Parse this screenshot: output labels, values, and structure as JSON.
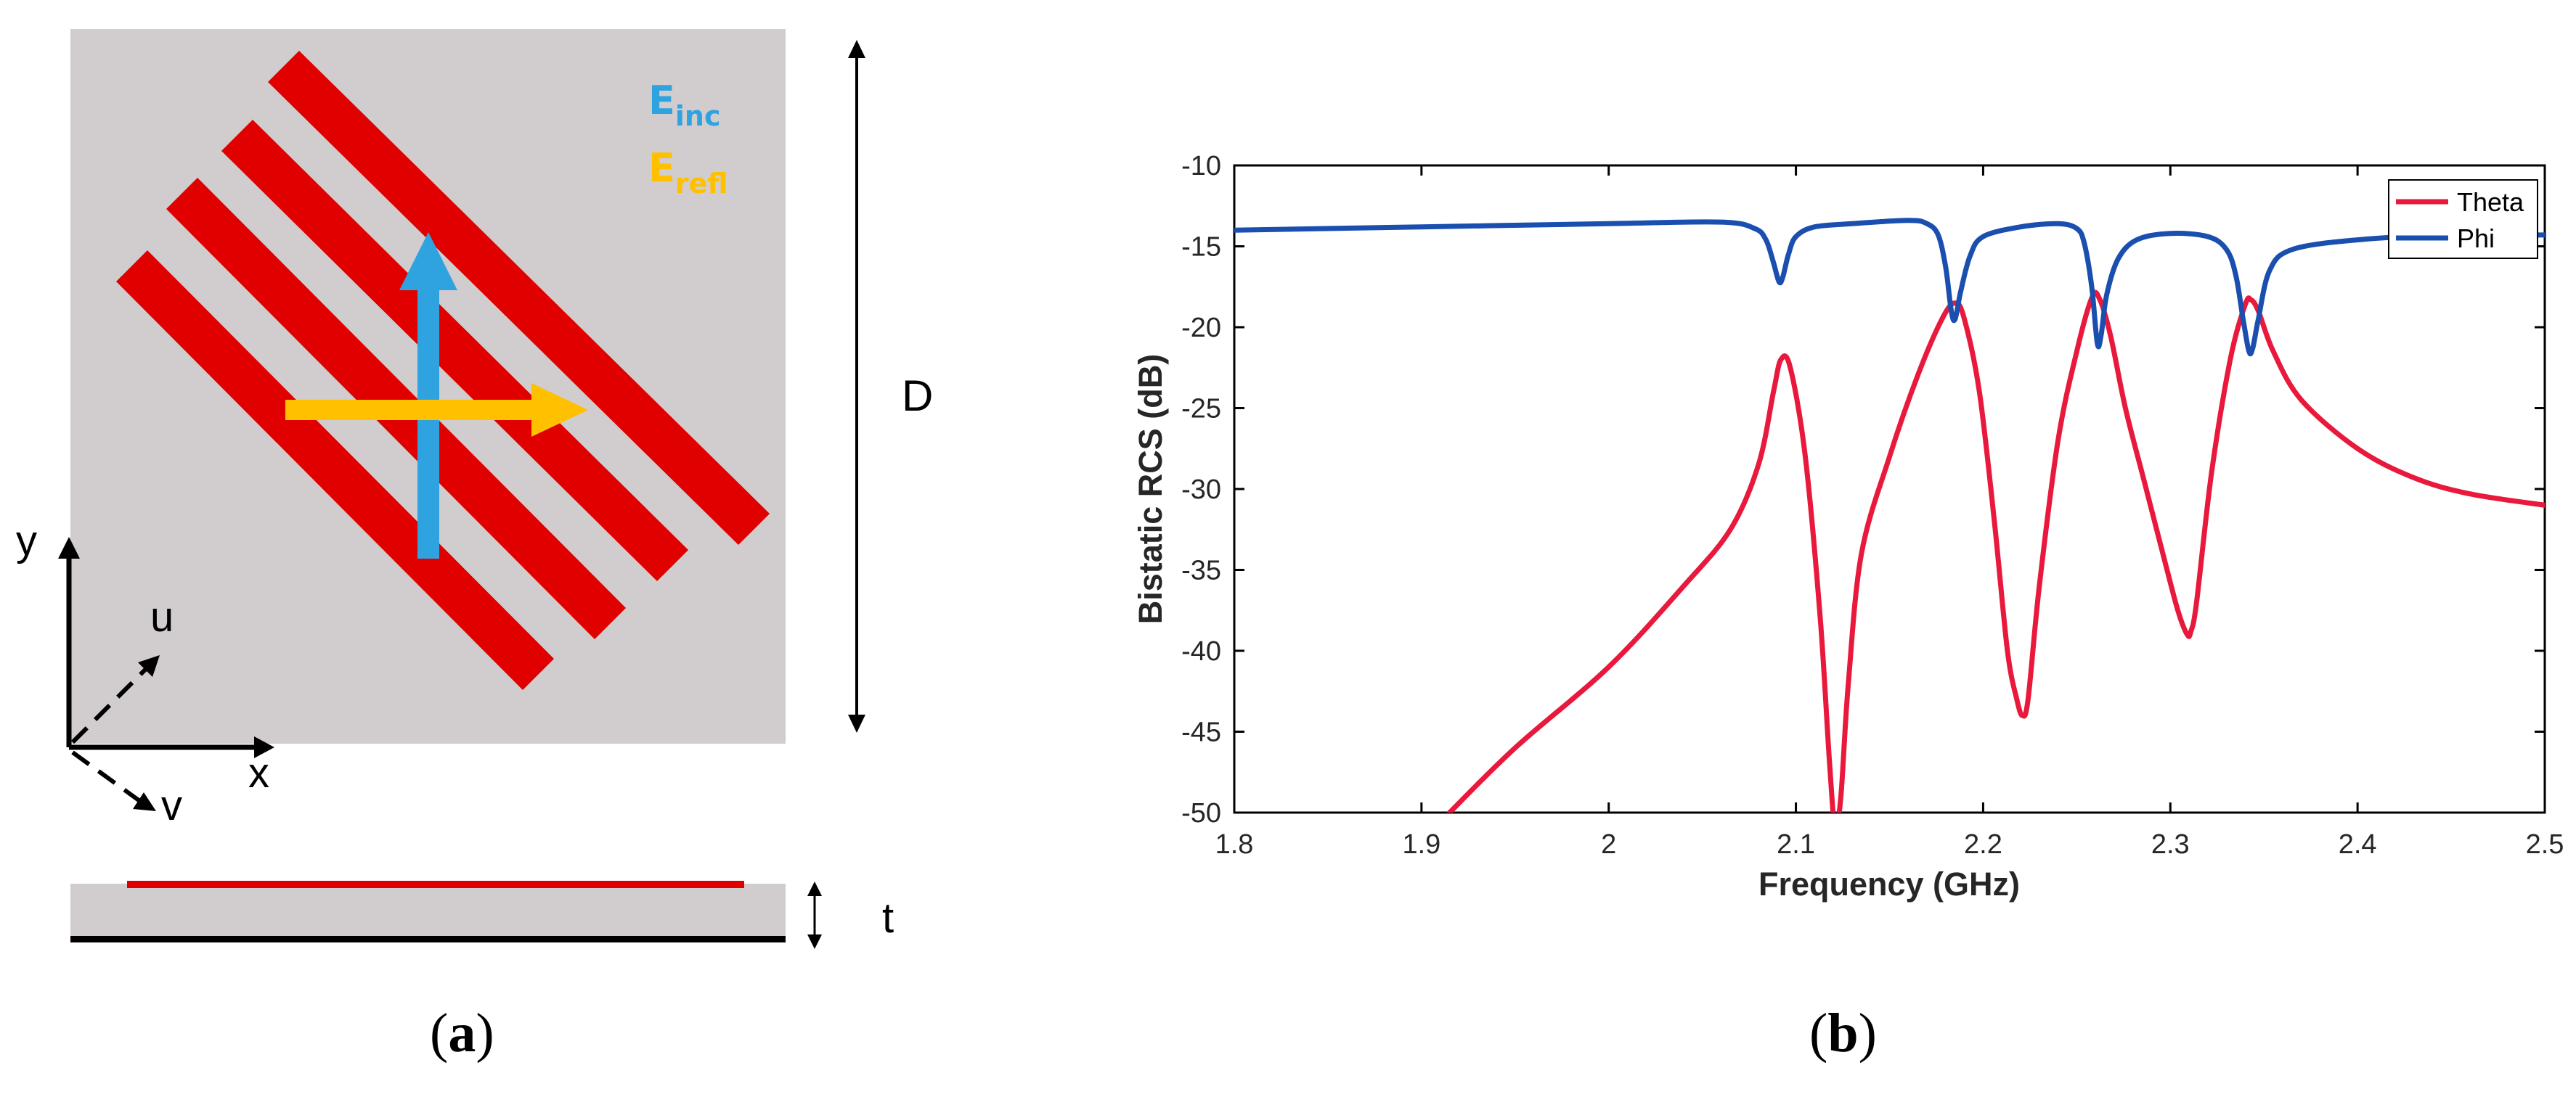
{
  "panel_a": {
    "caption_letter": "a",
    "labels": {
      "e_inc": "E",
      "e_inc_sub": "inc",
      "e_refl": "E",
      "e_refl_sub": "refl",
      "d_label": "D",
      "t_label": "t",
      "axis_x": "x",
      "axis_y": "y",
      "axis_u": "u",
      "axis_v": "v"
    },
    "colors": {
      "substrate": "#d1cccd",
      "strip": "#e00000",
      "e_inc": "#2fa3e0",
      "e_refl": "#ffc000",
      "ground": "#000000"
    }
  },
  "panel_b": {
    "caption_letter": "b"
  },
  "chart_data": {
    "type": "line",
    "title": "",
    "xlabel": "Frequency (GHz)",
    "ylabel": "Bistatic RCS (dB)",
    "xlim": [
      1.8,
      2.5
    ],
    "ylim": [
      -50,
      -10
    ],
    "xticks": [
      "1.8",
      "1.9",
      "2",
      "2.1",
      "2.2",
      "2.3",
      "2.4",
      "2.5"
    ],
    "xtick_values": [
      1.8,
      1.9,
      2.0,
      2.1,
      2.2,
      2.3,
      2.4,
      2.5
    ],
    "yticks": [
      "-10",
      "-15",
      "-20",
      "-25",
      "-30",
      "-35",
      "-40",
      "-45",
      "-50"
    ],
    "ytick_values": [
      -10,
      -15,
      -20,
      -25,
      -30,
      -35,
      -40,
      -45,
      -50
    ],
    "legend_position": "top-right",
    "series": [
      {
        "name": "Theta",
        "color": "#e8193c",
        "x": [
          1.915,
          1.95,
          2.0,
          2.04,
          2.065,
          2.08,
          2.088,
          2.092,
          2.097,
          2.105,
          2.113,
          2.118,
          2.121,
          2.124,
          2.128,
          2.135,
          2.15,
          2.165,
          2.178,
          2.185,
          2.19,
          2.198,
          2.206,
          2.213,
          2.218,
          2.221,
          2.224,
          2.23,
          2.24,
          2.25,
          2.258,
          2.262,
          2.268,
          2.276,
          2.286,
          2.296,
          2.304,
          2.309,
          2.311,
          2.314,
          2.322,
          2.332,
          2.34,
          2.343,
          2.347,
          2.355,
          2.37,
          2.4,
          2.43,
          2.46,
          2.5
        ],
        "values": [
          -50,
          -46,
          -41,
          -36,
          -32.5,
          -28.5,
          -24,
          -22,
          -22.5,
          -28,
          -38,
          -47,
          -51,
          -49,
          -42,
          -34,
          -28,
          -23,
          -19.5,
          -18.5,
          -19.5,
          -24,
          -32,
          -40,
          -43,
          -44,
          -43,
          -36,
          -27,
          -21.5,
          -18.2,
          -18.2,
          -20.5,
          -25,
          -29.5,
          -34,
          -37.5,
          -39,
          -38.8,
          -37,
          -29,
          -22,
          -18.6,
          -18.3,
          -19,
          -21.5,
          -24.5,
          -27.5,
          -29.3,
          -30.3,
          -31
        ]
      },
      {
        "name": "Phi",
        "color": "#1a4fb0",
        "x": [
          1.8,
          1.9,
          2.0,
          2.06,
          2.078,
          2.084,
          2.088,
          2.091,
          2.093,
          2.096,
          2.1,
          2.11,
          2.13,
          2.16,
          2.17,
          2.176,
          2.18,
          2.183,
          2.185,
          2.188,
          2.193,
          2.2,
          2.22,
          2.24,
          2.25,
          2.254,
          2.258,
          2.261,
          2.263,
          2.266,
          2.272,
          2.282,
          2.3,
          2.32,
          2.33,
          2.335,
          2.339,
          2.342,
          2.344,
          2.347,
          2.353,
          2.365,
          2.4,
          2.45,
          2.5
        ],
        "values": [
          -14,
          -13.8,
          -13.6,
          -13.5,
          -13.9,
          -14.6,
          -16,
          -17.2,
          -16.9,
          -15.5,
          -14.4,
          -13.8,
          -13.6,
          -13.4,
          -13.6,
          -14.3,
          -16.3,
          -19,
          -19.5,
          -17.8,
          -15.6,
          -14.4,
          -13.8,
          -13.6,
          -13.9,
          -14.8,
          -17.5,
          -21,
          -20.5,
          -18,
          -15.8,
          -14.6,
          -14.2,
          -14.4,
          -15.2,
          -16.8,
          -19.6,
          -21.5,
          -21.3,
          -19.5,
          -16.5,
          -15.2,
          -14.6,
          -14.3,
          -14.3
        ]
      }
    ]
  }
}
